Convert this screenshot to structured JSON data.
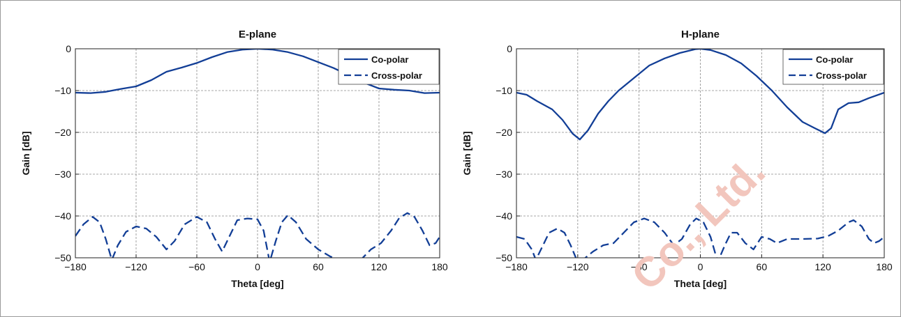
{
  "colors": {
    "line": "#123e96",
    "grid": "#8a8a8a",
    "axis": "#222222",
    "watermark": "#f2c6bd"
  },
  "watermark": "Co., Ltd.",
  "chart_data": [
    {
      "type": "line",
      "title": "E-plane",
      "xlabel": "Theta [deg]",
      "ylabel": "Gain [dB]",
      "xlim": [
        -180,
        180
      ],
      "ylim": [
        -50,
        0
      ],
      "xticks": [
        -180,
        -120,
        -60,
        0,
        60,
        120,
        180
      ],
      "yticks": [
        0,
        -10,
        -20,
        -30,
        -40,
        -50
      ],
      "xtick_labels": [
        "−180",
        "−120",
        "−60",
        "0",
        "60",
        "120",
        "180"
      ],
      "ytick_labels": [
        "0",
        "−10",
        "−20",
        "−30",
        "−40",
        "−50"
      ],
      "grid": true,
      "legend_position": "top-right",
      "series": [
        {
          "name": "Co-polar",
          "style": "solid",
          "points": [
            [
              -180,
              -10.5
            ],
            [
              -165,
              -10.6
            ],
            [
              -150,
              -10.3
            ],
            [
              -135,
              -9.6
            ],
            [
              -120,
              -9.0
            ],
            [
              -105,
              -7.5
            ],
            [
              -90,
              -5.5
            ],
            [
              -75,
              -4.5
            ],
            [
              -60,
              -3.4
            ],
            [
              -45,
              -2.0
            ],
            [
              -30,
              -0.8
            ],
            [
              -15,
              -0.2
            ],
            [
              0,
              0
            ],
            [
              15,
              -0.2
            ],
            [
              30,
              -0.8
            ],
            [
              45,
              -1.8
            ],
            [
              60,
              -3.2
            ],
            [
              75,
              -4.6
            ],
            [
              90,
              -6.3
            ],
            [
              105,
              -8.1
            ],
            [
              120,
              -9.5
            ],
            [
              135,
              -9.8
            ],
            [
              150,
              -10.0
            ],
            [
              165,
              -10.6
            ],
            [
              180,
              -10.5
            ]
          ]
        },
        {
          "name": "Cross-polar",
          "style": "dashed",
          "points": [
            [
              -180,
              -44.8
            ],
            [
              -172,
              -42.0
            ],
            [
              -163,
              -40.2
            ],
            [
              -156,
              -41.5
            ],
            [
              -150,
              -45.5
            ],
            [
              -144,
              -50.5
            ],
            [
              -138,
              -47.0
            ],
            [
              -130,
              -43.8
            ],
            [
              -120,
              -42.5
            ],
            [
              -110,
              -43.0
            ],
            [
              -100,
              -45.0
            ],
            [
              -90,
              -48.0
            ],
            [
              -82,
              -46.0
            ],
            [
              -72,
              -42.0
            ],
            [
              -60,
              -40.2
            ],
            [
              -50,
              -41.5
            ],
            [
              -42,
              -45.5
            ],
            [
              -35,
              -48.5
            ],
            [
              -28,
              -45.0
            ],
            [
              -20,
              -41.0
            ],
            [
              -10,
              -40.6
            ],
            [
              0,
              -40.8
            ],
            [
              6,
              -43.5
            ],
            [
              12,
              -51.0
            ],
            [
              18,
              -46.0
            ],
            [
              24,
              -41.5
            ],
            [
              30,
              -39.8
            ],
            [
              38,
              -41.5
            ],
            [
              48,
              -45.5
            ],
            [
              60,
              -48.0
            ],
            [
              72,
              -49.7
            ],
            [
              85,
              -51.0
            ],
            [
              100,
              -51.0
            ],
            [
              112,
              -48.0
            ],
            [
              122,
              -46.5
            ],
            [
              132,
              -43.5
            ],
            [
              140,
              -40.5
            ],
            [
              148,
              -39.3
            ],
            [
              155,
              -40.2
            ],
            [
              163,
              -43.5
            ],
            [
              170,
              -47.0
            ],
            [
              176,
              -46.5
            ],
            [
              180,
              -45.0
            ]
          ]
        }
      ]
    },
    {
      "type": "line",
      "title": "H-plane",
      "xlabel": "Theta [deg]",
      "ylabel": "Gain [dB]",
      "xlim": [
        -180,
        180
      ],
      "ylim": [
        -50,
        0
      ],
      "xticks": [
        -180,
        -120,
        -60,
        0,
        60,
        120,
        180
      ],
      "yticks": [
        0,
        -10,
        -20,
        -30,
        -40,
        -50
      ],
      "xtick_labels": [
        "−180",
        "−120",
        "−60",
        "0",
        "60",
        "120",
        "180"
      ],
      "ytick_labels": [
        "0",
        "−10",
        "−20",
        "−30",
        "−40",
        "−50"
      ],
      "grid": true,
      "legend_position": "top-right",
      "series": [
        {
          "name": "Co-polar",
          "style": "solid",
          "points": [
            [
              -180,
              -10.5
            ],
            [
              -170,
              -11.0
            ],
            [
              -160,
              -12.5
            ],
            [
              -145,
              -14.5
            ],
            [
              -135,
              -17.0
            ],
            [
              -125,
              -20.3
            ],
            [
              -118,
              -21.7
            ],
            [
              -110,
              -19.5
            ],
            [
              -100,
              -15.5
            ],
            [
              -90,
              -12.5
            ],
            [
              -80,
              -10.0
            ],
            [
              -65,
              -7.0
            ],
            [
              -50,
              -4.0
            ],
            [
              -35,
              -2.3
            ],
            [
              -20,
              -1.0
            ],
            [
              -5,
              -0.1
            ],
            [
              0,
              0
            ],
            [
              10,
              -0.3
            ],
            [
              25,
              -1.5
            ],
            [
              40,
              -3.5
            ],
            [
              55,
              -6.5
            ],
            [
              70,
              -10.0
            ],
            [
              85,
              -14.0
            ],
            [
              100,
              -17.5
            ],
            [
              112,
              -19.0
            ],
            [
              122,
              -20.2
            ],
            [
              128,
              -19.0
            ],
            [
              135,
              -14.5
            ],
            [
              145,
              -13.0
            ],
            [
              155,
              -12.8
            ],
            [
              165,
              -11.8
            ],
            [
              180,
              -10.5
            ]
          ]
        },
        {
          "name": "Cross-polar",
          "style": "dashed",
          "points": [
            [
              -180,
              -45.0
            ],
            [
              -172,
              -45.5
            ],
            [
              -165,
              -48.0
            ],
            [
              -161,
              -50.5
            ],
            [
              -155,
              -47.5
            ],
            [
              -148,
              -44.0
            ],
            [
              -140,
              -43.0
            ],
            [
              -133,
              -44.0
            ],
            [
              -127,
              -47.0
            ],
            [
              -121,
              -50.5
            ],
            [
              -114,
              -50.3
            ],
            [
              -105,
              -48.5
            ],
            [
              -95,
              -47.0
            ],
            [
              -85,
              -46.5
            ],
            [
              -75,
              -44.0
            ],
            [
              -65,
              -41.5
            ],
            [
              -55,
              -40.6
            ],
            [
              -45,
              -41.5
            ],
            [
              -35,
              -44.0
            ],
            [
              -26,
              -47.0
            ],
            [
              -18,
              -45.5
            ],
            [
              -10,
              -42.0
            ],
            [
              -4,
              -40.6
            ],
            [
              3,
              -41.5
            ],
            [
              10,
              -45.0
            ],
            [
              17,
              -51.0
            ],
            [
              24,
              -47.0
            ],
            [
              30,
              -44.0
            ],
            [
              36,
              -44.0
            ],
            [
              44,
              -46.5
            ],
            [
              52,
              -48.0
            ],
            [
              60,
              -45.0
            ],
            [
              68,
              -45.5
            ],
            [
              75,
              -46.5
            ],
            [
              85,
              -45.5
            ],
            [
              100,
              -45.5
            ],
            [
              115,
              -45.4
            ],
            [
              125,
              -44.8
            ],
            [
              135,
              -43.5
            ],
            [
              145,
              -41.5
            ],
            [
              150,
              -41.0
            ],
            [
              158,
              -42.5
            ],
            [
              165,
              -45.5
            ],
            [
              170,
              -46.5
            ],
            [
              175,
              -46.0
            ],
            [
              180,
              -45.0
            ]
          ]
        }
      ]
    }
  ]
}
